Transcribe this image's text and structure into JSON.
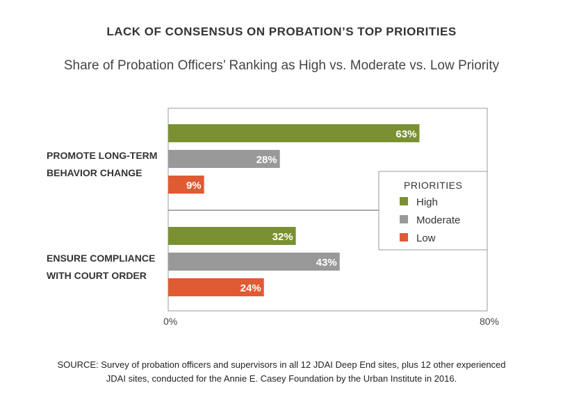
{
  "chart_data": {
    "type": "bar",
    "orientation": "horizontal",
    "title": "LACK OF CONSENSUS ON PROBATION’S TOP PRIORITIES",
    "subtitle": "Share of Probation Officers’ Ranking as High vs. Moderate vs. Low Priority",
    "categories": [
      [
        "PROMOTE LONG-TERM",
        "BEHAVIOR CHANGE"
      ],
      [
        "ENSURE COMPLIANCE",
        "WITH COURT ORDER"
      ]
    ],
    "series": [
      {
        "name": "High",
        "color": "#7a9133",
        "values": [
          63,
          32
        ]
      },
      {
        "name": "Moderate",
        "color": "#999999",
        "values": [
          28,
          43
        ]
      },
      {
        "name": "Low",
        "color": "#e05a33",
        "values": [
          9,
          24
        ]
      }
    ],
    "value_suffix": "%",
    "xlim": [
      0,
      80
    ],
    "x_tick_labels": [
      "0%",
      "80%"
    ],
    "legend_title": "PRIORITIES",
    "legend_position": "right",
    "grid": false
  },
  "source": "SOURCE: Survey of probation officers and supervisors in all 12 JDAI Deep End sites, plus 12 other experienced JDAI sites, conducted for the Annie E. Casey Foundation by the Urban Institute in 2016."
}
